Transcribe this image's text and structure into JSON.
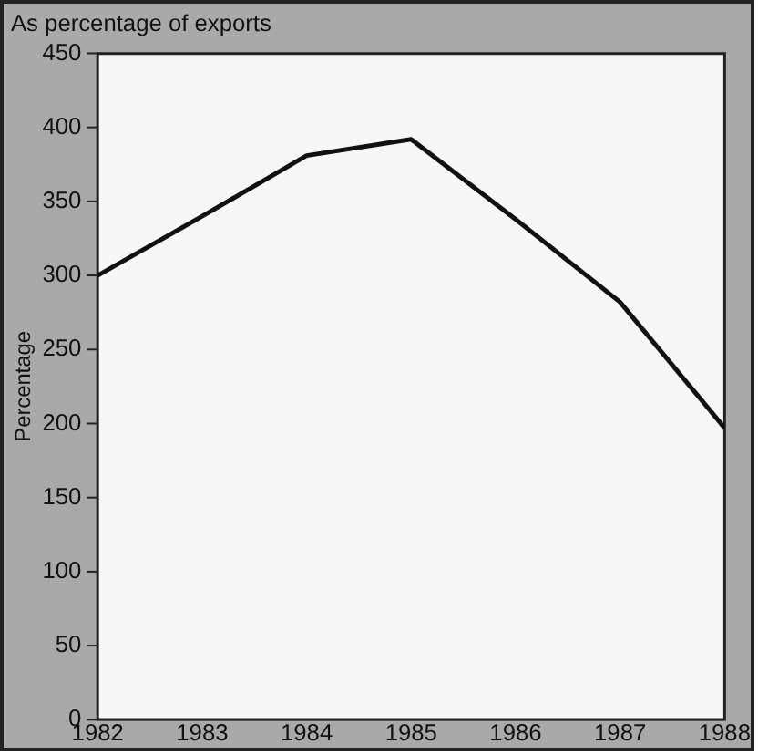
{
  "chart_data": {
    "type": "line",
    "title": "As percentage of exports",
    "ylabel": "Percentage",
    "x": [
      1982,
      1983,
      1984,
      1985,
      1986,
      1987,
      1988
    ],
    "series": [
      {
        "color": "#111111",
        "values": [
          300,
          340,
          381,
          392,
          338,
          282,
          197
        ]
      }
    ],
    "xlim": [
      1982,
      1988
    ],
    "xticks": [
      1982,
      1983,
      1984,
      1985,
      1986,
      1987,
      1988
    ],
    "ylim": [
      0,
      450
    ],
    "yticks": [
      0,
      50,
      100,
      150,
      200,
      250,
      300,
      350,
      400,
      450
    ],
    "grid": false,
    "legend": false,
    "marker": "none",
    "line_style": "solid"
  }
}
